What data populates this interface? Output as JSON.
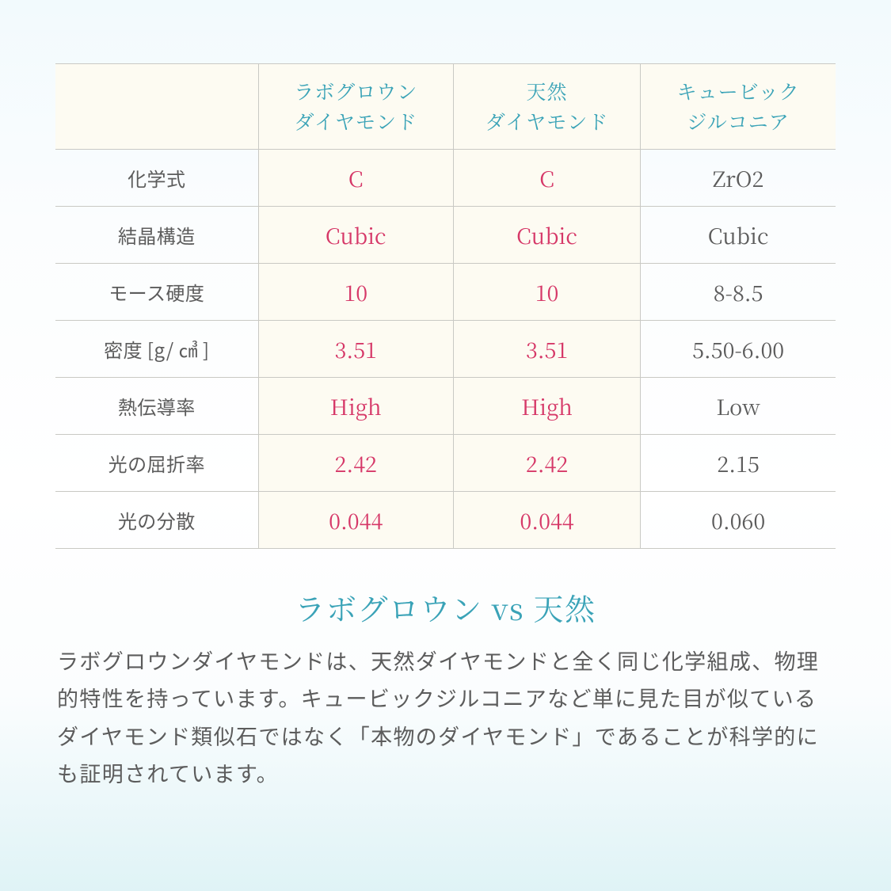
{
  "table": {
    "columns": [
      "",
      "ラボグロウン\nダイヤモンド",
      "天然\nダイヤモンド",
      "キュービック\nジルコニア"
    ],
    "rows": [
      {
        "label": "化学式",
        "lab": "C",
        "natural": "C",
        "cz": "ZrO2"
      },
      {
        "label": "結晶構造",
        "lab": "Cubic",
        "natural": "Cubic",
        "cz": "Cubic"
      },
      {
        "label": "モース硬度",
        "lab": "10",
        "natural": "10",
        "cz": "8-8.5"
      },
      {
        "label": "密度 [g/ ㎤ ]",
        "lab": "3.51",
        "natural": "3.51",
        "cz": "5.50-6.00"
      },
      {
        "label": "熱伝導率",
        "lab": "High",
        "natural": "High",
        "cz": "Low"
      },
      {
        "label": "光の屈折率",
        "lab": "2.42",
        "natural": "2.42",
        "cz": "2.15"
      },
      {
        "label": "光の分散",
        "lab": "0.044",
        "natural": "0.044",
        "cz": "0.060"
      }
    ],
    "colors": {
      "header_text": "#3aa3b7",
      "highlight_text": "#d63868",
      "neutral_text": "#5c5c5c",
      "border": "#c9c9c4",
      "highlight_bg": "#fdfbf2"
    },
    "font_sizes": {
      "header": 25,
      "cell": 27,
      "row_label": 24
    }
  },
  "heading": "ラボグロウン vs 天然",
  "body": "ラボグロウンダイヤモンドは、天然ダイヤモンドと全く同じ化学組成、物理的特性を持っています。キュービックジルコニアなど単に見た目が似ているダイヤモンド類似石ではなく「本物のダイヤモンド」であることが科学的にも証明されています。",
  "background_gradient": [
    "#f2fafd",
    "#ffffff",
    "#dff3f6"
  ]
}
